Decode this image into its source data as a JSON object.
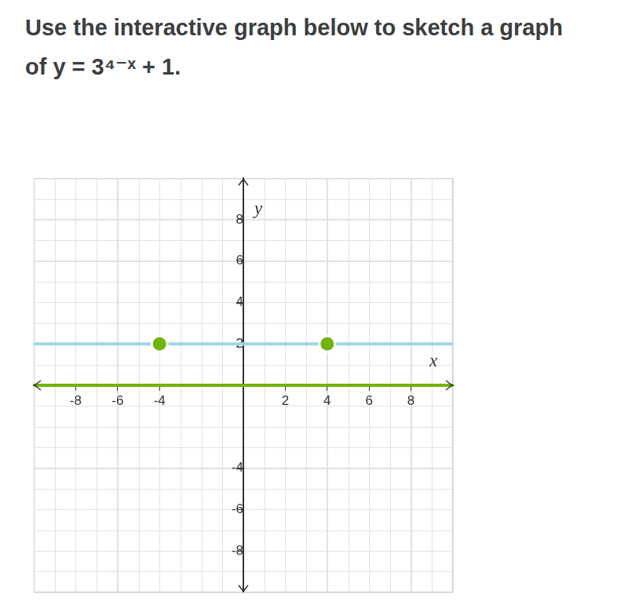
{
  "chart_data": {
    "type": "line",
    "title": "Use the interactive graph below to sketch a graph of y = 3⁴⁻ˣ + 1.",
    "xlabel": "x",
    "ylabel": "y",
    "xlim": [
      -10,
      10
    ],
    "ylim": [
      -10,
      10
    ],
    "xticks": [
      -8,
      -6,
      -4,
      2,
      4,
      6,
      8
    ],
    "yticks": [
      -8,
      -6,
      -4,
      2,
      4,
      6,
      8
    ],
    "grid": true,
    "series": [
      {
        "type": "line",
        "color": "#9dd6e8",
        "x": [
          -10,
          10
        ],
        "values": [
          2,
          2
        ]
      },
      {
        "type": "line",
        "color": "#71b307",
        "x": [
          -10,
          10
        ],
        "values": [
          0,
          0
        ]
      },
      {
        "type": "scatter",
        "color": "#71b307",
        "marker": "circle",
        "x": [
          -4,
          4
        ],
        "values": [
          2,
          2
        ]
      }
    ]
  }
}
